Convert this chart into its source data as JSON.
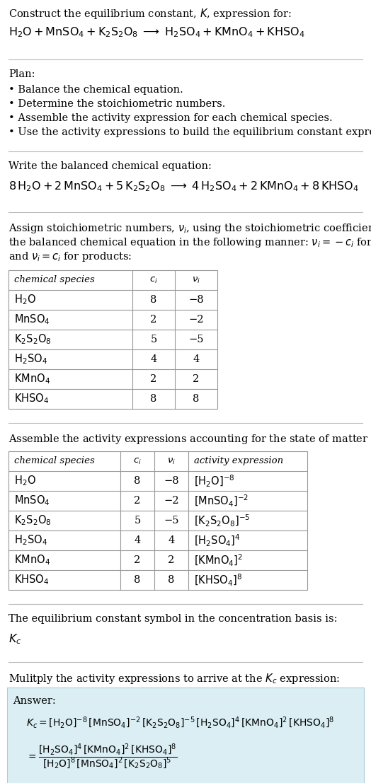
{
  "title_line1": "Construct the equilibrium constant, $K$, expression for:",
  "reaction_unbalanced": "$\\mathrm{H_2O + MnSO_4 + K_2S_2O_8 \\;\\longrightarrow\\; H_2SO_4 + KMnO_4 + KHSO_4}$",
  "plan_header": "Plan:",
  "plan_items": [
    "• Balance the chemical equation.",
    "• Determine the stoichiometric numbers.",
    "• Assemble the activity expression for each chemical species.",
    "• Use the activity expressions to build the equilibrium constant expression."
  ],
  "balanced_header": "Write the balanced chemical equation:",
  "reaction_balanced": "$\\mathrm{8\\,H_2O + 2\\,MnSO_4 + 5\\,K_2S_2O_8 \\;\\longrightarrow\\; 4\\,H_2SO_4 + 2\\,KMnO_4 + 8\\,KHSO_4}$",
  "stoich_intro": "Assign stoichiometric numbers, $\\nu_i$, using the stoichiometric coefficients, $c_i$, from\nthe balanced chemical equation in the following manner: $\\nu_i = -c_i$ for reactants\nand $\\nu_i = c_i$ for products:",
  "table1_headers": [
    "chemical species",
    "$c_i$",
    "$\\nu_i$"
  ],
  "table1_rows": [
    [
      "$\\mathrm{H_2O}$",
      "8",
      "−8"
    ],
    [
      "$\\mathrm{MnSO_4}$",
      "2",
      "−2"
    ],
    [
      "$\\mathrm{K_2S_2O_8}$",
      "5",
      "−5"
    ],
    [
      "$\\mathrm{H_2SO_4}$",
      "4",
      "4"
    ],
    [
      "$\\mathrm{KMnO_4}$",
      "2",
      "2"
    ],
    [
      "$\\mathrm{KHSO_4}$",
      "8",
      "8"
    ]
  ],
  "activity_intro": "Assemble the activity expressions accounting for the state of matter and $\\nu_i$:",
  "table2_headers": [
    "chemical species",
    "$c_i$",
    "$\\nu_i$",
    "activity expression"
  ],
  "table2_rows": [
    [
      "$\\mathrm{H_2O}$",
      "8",
      "−8",
      "$[\\mathrm{H_2O}]^{-8}$"
    ],
    [
      "$\\mathrm{MnSO_4}$",
      "2",
      "−2",
      "$[\\mathrm{MnSO_4}]^{-2}$"
    ],
    [
      "$\\mathrm{K_2S_2O_8}$",
      "5",
      "−5",
      "$[\\mathrm{K_2S_2O_8}]^{-5}$"
    ],
    [
      "$\\mathrm{H_2SO_4}$",
      "4",
      "4",
      "$[\\mathrm{H_2SO_4}]^{4}$"
    ],
    [
      "$\\mathrm{KMnO_4}$",
      "2",
      "2",
      "$[\\mathrm{KMnO_4}]^{2}$"
    ],
    [
      "$\\mathrm{KHSO_4}$",
      "8",
      "8",
      "$[\\mathrm{KHSO_4}]^{8}$"
    ]
  ],
  "kc_intro": "The equilibrium constant symbol in the concentration basis is:",
  "kc_symbol": "$K_c$",
  "multiply_intro": "Mulitply the activity expressions to arrive at the $K_c$ expression:",
  "answer_label": "Answer:",
  "answer_line1": "$K_c = [\\mathrm{H_2O}]^{-8}\\,[\\mathrm{MnSO_4}]^{-2}\\,[\\mathrm{K_2S_2O_8}]^{-5}\\,[\\mathrm{H_2SO_4}]^{4}\\,[\\mathrm{KMnO_4}]^{2}\\,[\\mathrm{KHSO_4}]^{8}$",
  "answer_line2": "$= \\dfrac{[\\mathrm{H_2SO_4}]^{4}\\,[\\mathrm{KMnO_4}]^{2}\\,[\\mathrm{KHSO_4}]^{8}}{[\\mathrm{H_2O}]^{8}\\,[\\mathrm{MnSO_4}]^{2}\\,[\\mathrm{K_2S_2O_8}]^{5}}$",
  "bg_color": "#ffffff",
  "text_color": "#000000",
  "table_border_color": "#999999",
  "answer_box_color": "#daeef3",
  "answer_box_border": "#aaccdd"
}
